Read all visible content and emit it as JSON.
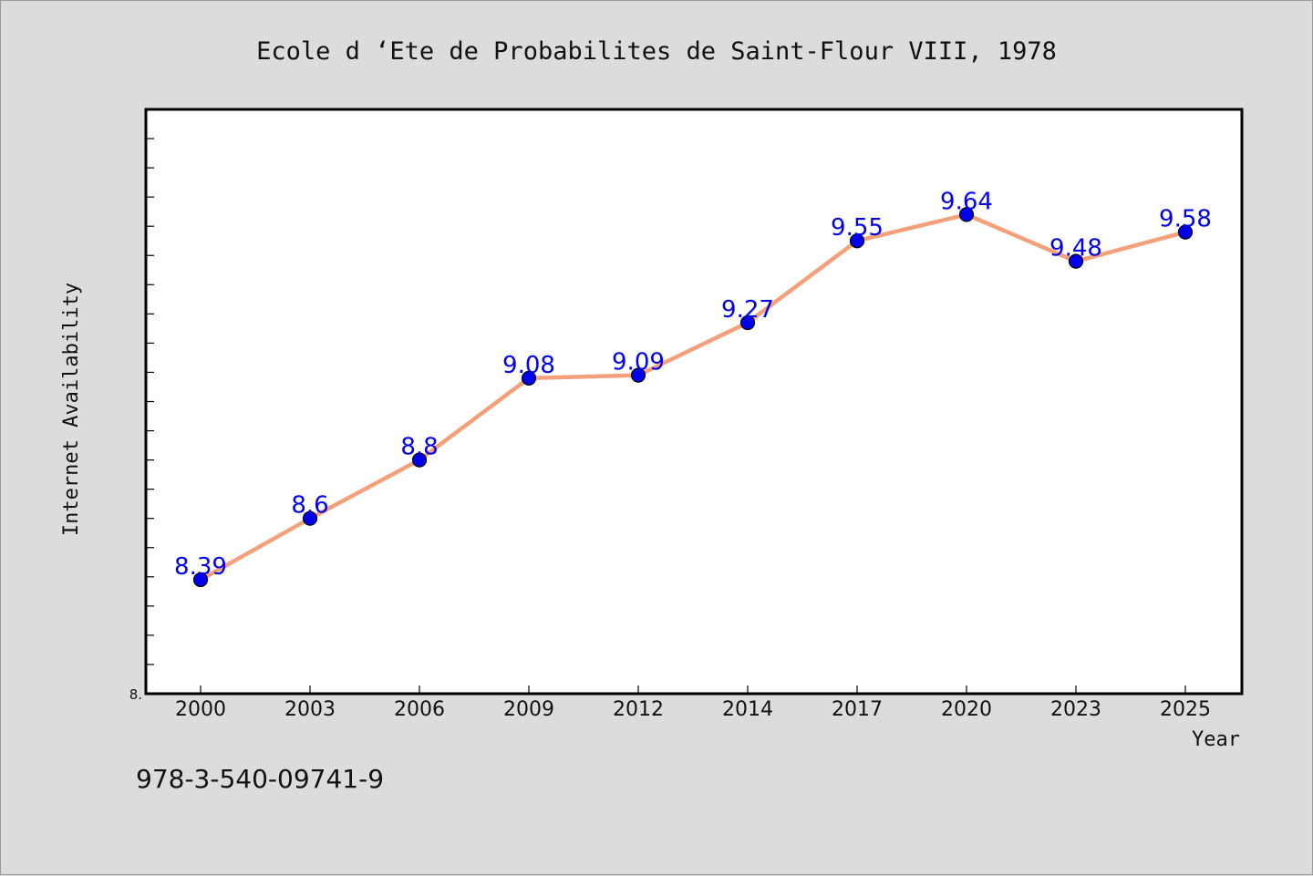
{
  "colors": {
    "background": "#dcdcdc",
    "plot_background": "#ffffff",
    "line": "#f4a07a",
    "marker": "#0000ee",
    "label": "#0000ee"
  },
  "footer": {
    "isbn": "978-3-540-09741-9"
  },
  "chart_data": {
    "type": "line",
    "title": "Ecole d ‘Ete de Probabilites de Saint-Flour VIII, 1978",
    "xlabel": "Year",
    "ylabel": "Internet Availability",
    "categories": [
      "2000",
      "2003",
      "2006",
      "2009",
      "2012",
      "2014",
      "2017",
      "2020",
      "2023",
      "2025"
    ],
    "series": [
      {
        "values": [
          8.39,
          8.6,
          8.8,
          9.08,
          9.09,
          9.27,
          9.55,
          9.64,
          9.48,
          9.58
        ],
        "labels": [
          "8.39",
          "8.6",
          "8.8",
          "9.08",
          "9.09",
          "9.27",
          "9.55",
          "9.64",
          "9.48",
          "9.58"
        ]
      }
    ],
    "ylim": [
      8.0,
      10.0
    ],
    "y_tick_labels": [
      "8."
    ],
    "grid": false,
    "legend": "none"
  }
}
